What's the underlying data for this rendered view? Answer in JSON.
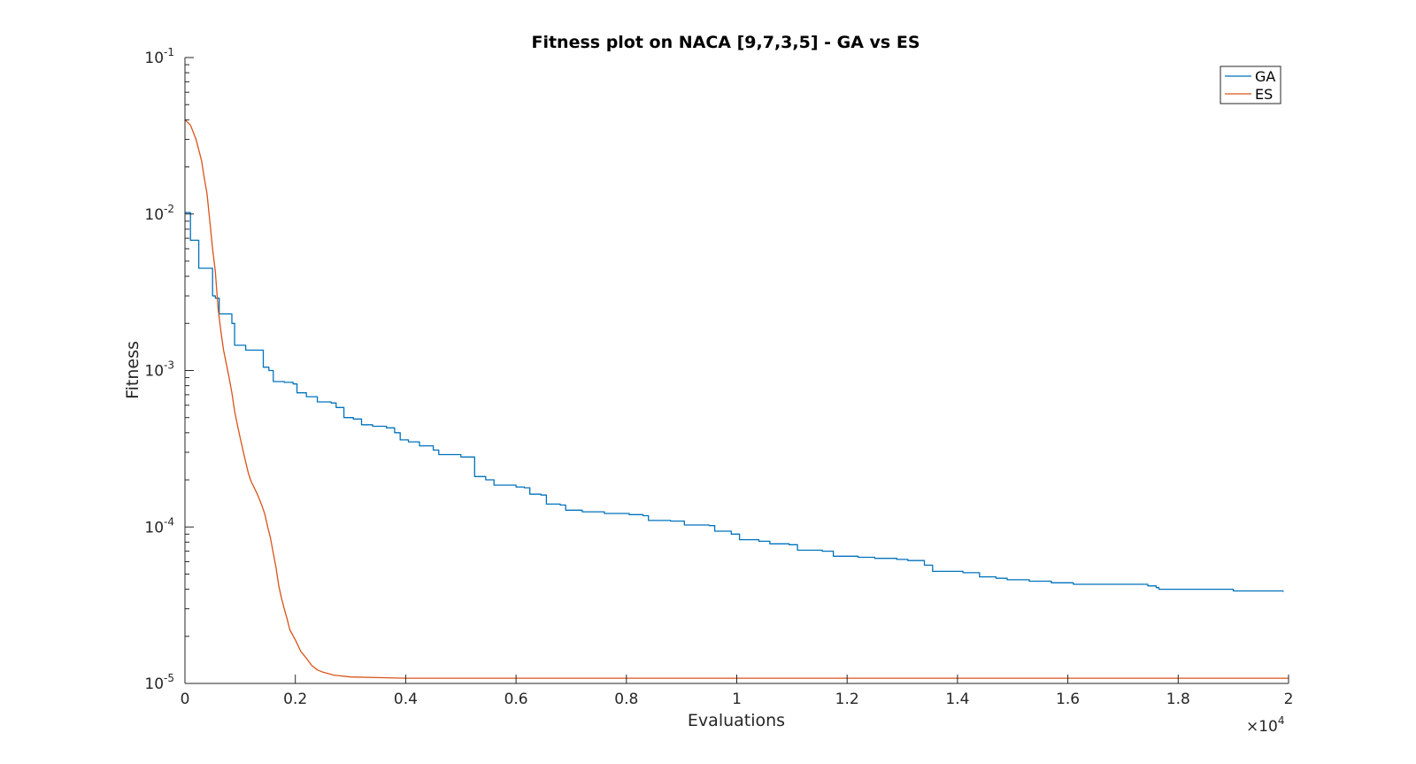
{
  "chart_data": {
    "type": "line",
    "title": "Fitness plot on NACA [9,7,3,5] - GA vs ES",
    "xlabel": "Evaluations",
    "ylabel": "Fitness",
    "x_scale_label": "×10",
    "x_scale_exponent": "4",
    "x_scale": "linear",
    "y_scale": "log",
    "xlim": [
      0,
      20000
    ],
    "ylim": [
      1e-05,
      0.1
    ],
    "grid": false,
    "legend_position": "top-right",
    "x_ticks": [
      {
        "value": 0,
        "label": "0"
      },
      {
        "value": 2000,
        "label": "0.2"
      },
      {
        "value": 4000,
        "label": "0.4"
      },
      {
        "value": 6000,
        "label": "0.6"
      },
      {
        "value": 8000,
        "label": "0.8"
      },
      {
        "value": 10000,
        "label": "1"
      },
      {
        "value": 12000,
        "label": "1.2"
      },
      {
        "value": 14000,
        "label": "1.4"
      },
      {
        "value": 16000,
        "label": "1.6"
      },
      {
        "value": 18000,
        "label": "1.8"
      },
      {
        "value": 20000,
        "label": "2"
      }
    ],
    "y_ticks": [
      {
        "value": 0.1,
        "base": "10",
        "exp": "-1"
      },
      {
        "value": 0.01,
        "base": "10",
        "exp": "-2"
      },
      {
        "value": 0.001,
        "base": "10",
        "exp": "-3"
      },
      {
        "value": 0.0001,
        "base": "10",
        "exp": "-4"
      },
      {
        "value": 1e-05,
        "base": "10",
        "exp": "-5"
      }
    ],
    "series": [
      {
        "name": "GA",
        "color": "#0072BD",
        "step": true,
        "points": [
          [
            0,
            0.0102
          ],
          [
            100,
            0.0068
          ],
          [
            250,
            0.0045
          ],
          [
            500,
            0.003
          ],
          [
            550,
            0.0029
          ],
          [
            620,
            0.0023
          ],
          [
            850,
            0.002
          ],
          [
            900,
            0.00145
          ],
          [
            1050,
            0.00145
          ],
          [
            1100,
            0.00135
          ],
          [
            1330,
            0.00135
          ],
          [
            1420,
            0.00105
          ],
          [
            1520,
            0.001
          ],
          [
            1600,
            0.00085
          ],
          [
            1800,
            0.00084
          ],
          [
            1960,
            0.00082
          ],
          [
            2030,
            0.00072
          ],
          [
            2200,
            0.00068
          ],
          [
            2400,
            0.00063
          ],
          [
            2650,
            0.00062
          ],
          [
            2740,
            0.00058
          ],
          [
            2880,
            0.0005
          ],
          [
            3050,
            0.00049
          ],
          [
            3200,
            0.00045
          ],
          [
            3400,
            0.00044
          ],
          [
            3650,
            0.00043
          ],
          [
            3800,
            0.0004
          ],
          [
            3900,
            0.00036
          ],
          [
            4050,
            0.00035
          ],
          [
            4250,
            0.00033
          ],
          [
            4500,
            0.00031
          ],
          [
            4600,
            0.00029
          ],
          [
            4900,
            0.00029
          ],
          [
            5000,
            0.00028
          ],
          [
            5200,
            0.00028
          ],
          [
            5250,
            0.00021
          ],
          [
            5450,
            0.0002
          ],
          [
            5600,
            0.000185
          ],
          [
            6000,
            0.00018
          ],
          [
            6150,
            0.000178
          ],
          [
            6250,
            0.000162
          ],
          [
            6450,
            0.00016
          ],
          [
            6550,
            0.00014
          ],
          [
            6800,
            0.000138
          ],
          [
            6900,
            0.000128
          ],
          [
            7200,
            0.000125
          ],
          [
            7600,
            0.000122
          ],
          [
            8050,
            0.00012
          ],
          [
            8300,
            0.000118
          ],
          [
            8400,
            0.00011
          ],
          [
            8800,
            0.000109
          ],
          [
            9050,
            0.000103
          ],
          [
            9500,
            0.000102
          ],
          [
            9600,
            9.4e-05
          ],
          [
            9900,
            9e-05
          ],
          [
            10050,
            8.3e-05
          ],
          [
            10400,
            8.1e-05
          ],
          [
            10600,
            7.8e-05
          ],
          [
            10950,
            7.7e-05
          ],
          [
            11100,
            7.1e-05
          ],
          [
            11550,
            7e-05
          ],
          [
            11750,
            6.5e-05
          ],
          [
            12200,
            6.4e-05
          ],
          [
            12500,
            6.3e-05
          ],
          [
            12900,
            6.2e-05
          ],
          [
            13100,
            6.1e-05
          ],
          [
            13400,
            5.7e-05
          ],
          [
            13550,
            5.2e-05
          ],
          [
            14100,
            5.1e-05
          ],
          [
            14400,
            4.8e-05
          ],
          [
            14700,
            4.7e-05
          ],
          [
            14900,
            4.6e-05
          ],
          [
            15300,
            4.5e-05
          ],
          [
            15700,
            4.4e-05
          ],
          [
            15950,
            4.4e-05
          ],
          [
            16100,
            4.3e-05
          ],
          [
            17000,
            4.3e-05
          ],
          [
            17450,
            4.2e-05
          ],
          [
            17600,
            4.1e-05
          ],
          [
            17650,
            4e-05
          ],
          [
            18600,
            4e-05
          ],
          [
            19000,
            3.9e-05
          ],
          [
            19250,
            3.9e-05
          ],
          [
            19900,
            3.85e-05
          ]
        ]
      },
      {
        "name": "ES",
        "color": "#D95319",
        "step": false,
        "points": [
          [
            0,
            0.04
          ],
          [
            100,
            0.037
          ],
          [
            200,
            0.03
          ],
          [
            300,
            0.022
          ],
          [
            350,
            0.017
          ],
          [
            400,
            0.0135
          ],
          [
            450,
            0.009
          ],
          [
            500,
            0.006
          ],
          [
            550,
            0.0043
          ],
          [
            600,
            0.0025
          ],
          [
            650,
            0.0018
          ],
          [
            700,
            0.00135
          ],
          [
            750,
            0.0011
          ],
          [
            800,
            0.0009
          ],
          [
            850,
            0.00072
          ],
          [
            900,
            0.00055
          ],
          [
            950,
            0.00045
          ],
          [
            1000,
            0.00037
          ],
          [
            1050,
            0.00031
          ],
          [
            1100,
            0.00026
          ],
          [
            1150,
            0.00022
          ],
          [
            1200,
            0.000195
          ],
          [
            1250,
            0.00018
          ],
          [
            1300,
            0.000165
          ],
          [
            1350,
            0.00015
          ],
          [
            1400,
            0.000135
          ],
          [
            1450,
            0.00012
          ],
          [
            1500,
            0.0001
          ],
          [
            1550,
            8.5e-05
          ],
          [
            1600,
            6.8e-05
          ],
          [
            1650,
            5.5e-05
          ],
          [
            1700,
            4.2e-05
          ],
          [
            1750,
            3.5e-05
          ],
          [
            1800,
            3e-05
          ],
          [
            1850,
            2.6e-05
          ],
          [
            1900,
            2.2e-05
          ],
          [
            2000,
            1.9e-05
          ],
          [
            2100,
            1.6e-05
          ],
          [
            2200,
            1.45e-05
          ],
          [
            2300,
            1.3e-05
          ],
          [
            2400,
            1.22e-05
          ],
          [
            2500,
            1.18e-05
          ],
          [
            2700,
            1.13e-05
          ],
          [
            3000,
            1.1e-05
          ],
          [
            3500,
            1.09e-05
          ],
          [
            4000,
            1.08e-05
          ],
          [
            6000,
            1.08e-05
          ],
          [
            10000,
            1.08e-05
          ],
          [
            15000,
            1.08e-05
          ],
          [
            20000,
            1.08e-05
          ]
        ]
      }
    ]
  }
}
